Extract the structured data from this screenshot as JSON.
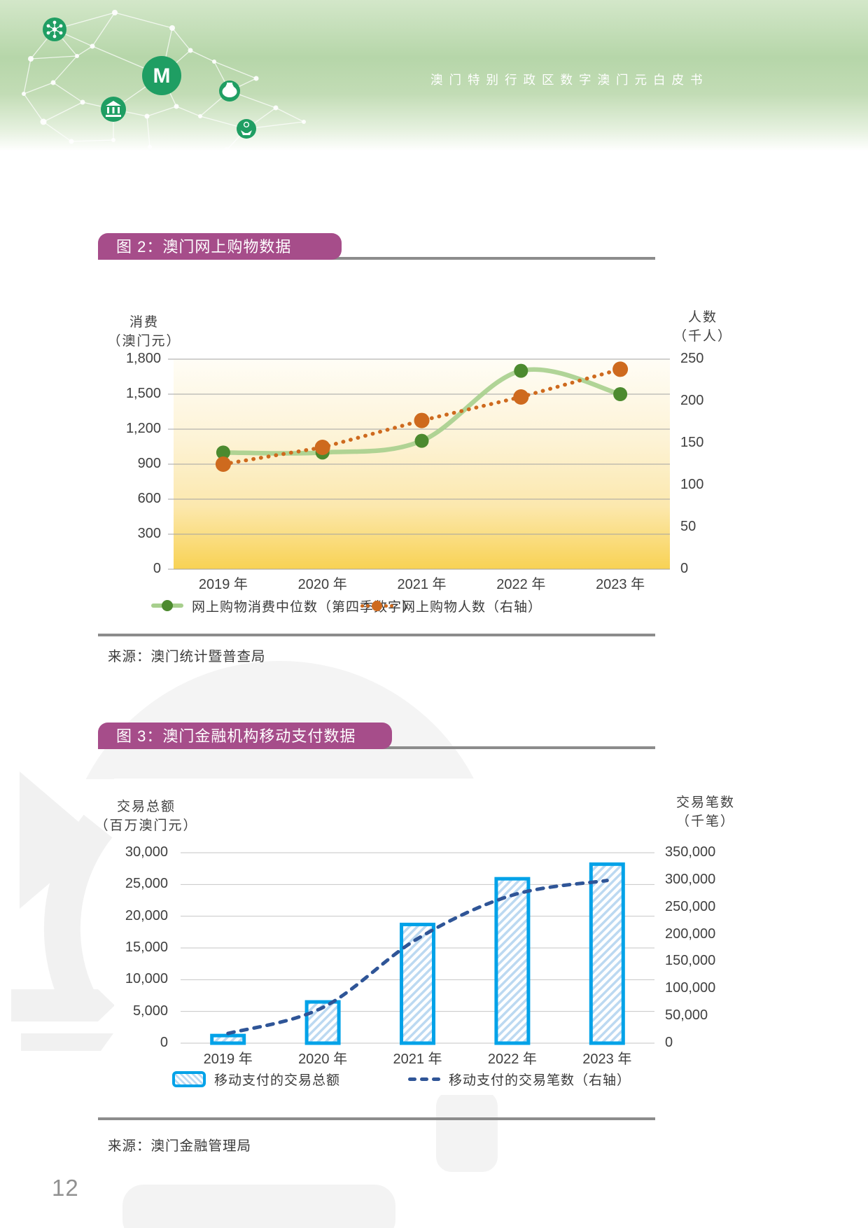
{
  "header": {
    "title": "澳门特别行政区数字澳门元白皮书",
    "icons": [
      "network-mesh-icon",
      "gear-icon",
      "macau-m-logo-icon",
      "money-bag-icon",
      "bank-icon",
      "handshake-icon"
    ]
  },
  "page_number": "12",
  "figure2": {
    "source": "来源：澳门统计暨普查局"
  },
  "figure3": {
    "source": "来源：澳门金融管理局"
  },
  "colors": {
    "title_bar": "#a64d8a",
    "header_green": "#b6d6a9",
    "icon_green": "#1f9e63",
    "green_line": "#a7cf8d",
    "green_point": "#4c8a2f",
    "orange": "#ce6a1e",
    "bar_border_blue": "#00a2e8",
    "bar_hatch_blue": "#bcd9f1",
    "dashed_navy": "#2f5597",
    "rule_gray": "#8c8c8c"
  },
  "chart_data": [
    {
      "id": "fig2",
      "type": "line",
      "title": "图 2：澳门网上购物数据",
      "categories": [
        "2019 年",
        "2020 年",
        "2021 年",
        "2022 年",
        "2023 年"
      ],
      "series": [
        {
          "name": "网上购物消费中位数（第四季数字）",
          "type": "line",
          "line_style": "solid-smooth",
          "axis": "left",
          "color": "#a7cf8d",
          "point_color": "#4c8a2f",
          "values": [
            1000,
            1000,
            1100,
            1700,
            1500
          ]
        },
        {
          "name": "网上购物人数（右轴）",
          "type": "line",
          "line_style": "dotted",
          "axis": "right",
          "color": "#ce6a1e",
          "point_color": "#ce6a1e",
          "values": [
            125,
            145,
            177,
            205,
            238
          ]
        }
      ],
      "left_axis": {
        "label": "消费（澳门元）",
        "label_lines": [
          "消费",
          "（澳门元）"
        ],
        "min": 0,
        "max": 1800,
        "tick_labels": [
          "1,800",
          "1,500",
          "1,200",
          "900",
          "600",
          "300",
          "0"
        ]
      },
      "right_axis": {
        "label": "人数（千人）",
        "label_lines": [
          "人数",
          "（千人）"
        ],
        "min": 0,
        "max": 250,
        "tick_labels": [
          "250",
          "200",
          "150",
          "100",
          "50",
          "0"
        ]
      },
      "plot_background_gradient": [
        "#fffdf6",
        "#fdf3d6",
        "#fce8ae",
        "#f8d254"
      ],
      "grid": true,
      "legend_position": "bottom"
    },
    {
      "id": "fig3",
      "type": "bar",
      "title": "图 3：澳门金融机构移动支付数据",
      "categories": [
        "2019 年",
        "2020 年",
        "2021 年",
        "2022 年",
        "2023 年"
      ],
      "series": [
        {
          "name": "移动支付的交易总额",
          "type": "bar",
          "axis": "left",
          "color": "#00a2e8",
          "fill_style": "diagonal-hatch",
          "fill_color": "#bcd9f1",
          "values": [
            1200,
            6500,
            18700,
            25900,
            28200
          ]
        },
        {
          "name": "移动支付的交易笔数（右轴）",
          "type": "line",
          "line_style": "dashed-smooth",
          "axis": "right",
          "color": "#2f5597",
          "values": [
            17900,
            65500,
            192000,
            272000,
            299000
          ]
        }
      ],
      "left_axis": {
        "label": "交易总额（百万澳门元）",
        "label_lines": [
          "交易总额",
          "（百万澳门元）"
        ],
        "min": 0,
        "max": 30000,
        "tick_labels": [
          "30,000",
          "25,000",
          "20,000",
          "15,000",
          "10,000",
          "5,000",
          "0"
        ]
      },
      "right_axis": {
        "label": "交易笔数（千笔）",
        "label_lines": [
          "交易笔数",
          "（千笔）"
        ],
        "min": 0,
        "max": 350000,
        "tick_labels": [
          "350,000",
          "300,000",
          "250,000",
          "200,000",
          "150,000",
          "100,000",
          "50,000",
          "0"
        ]
      },
      "plot_background_gradient": [
        "#ffffff",
        "#ffffff"
      ],
      "grid": true,
      "legend_position": "bottom"
    }
  ]
}
